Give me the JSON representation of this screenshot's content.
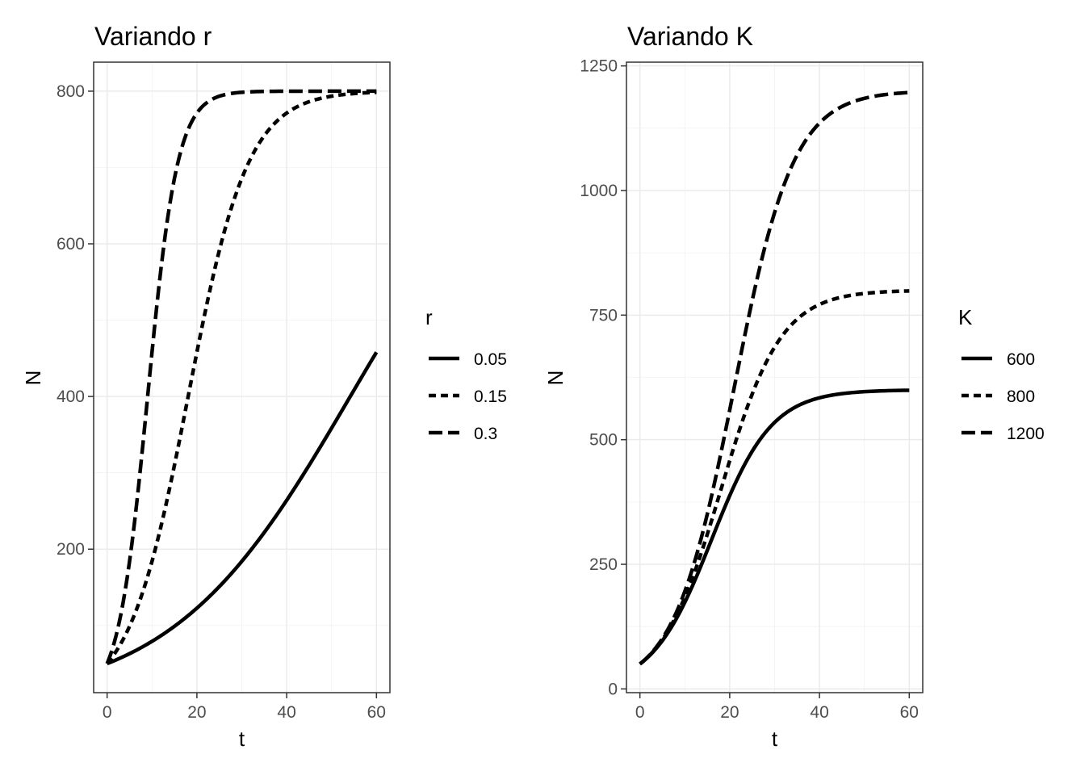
{
  "chart_data": [
    {
      "type": "line",
      "title": "Variando r",
      "xlabel": "t",
      "ylabel": "N",
      "xlim": [
        -3,
        63
      ],
      "ylim": [
        12,
        838
      ],
      "x_ticks": [
        "0",
        "20",
        "40",
        "60"
      ],
      "x_tick_values": [
        0,
        20,
        40,
        60
      ],
      "y_ticks": [
        "200",
        "400",
        "600",
        "800"
      ],
      "y_tick_values": [
        200,
        400,
        600,
        800
      ],
      "grid": true,
      "legend": {
        "title": "r",
        "position": "right"
      },
      "model": {
        "N0": 50,
        "K": 800
      },
      "series": [
        {
          "name": "0.05",
          "r": 0.05,
          "K": 800,
          "linetype": "solid",
          "x": [
            0,
            60
          ],
          "y_end": 455
        },
        {
          "name": "0.15",
          "r": 0.15,
          "K": 800,
          "linetype": "dotted",
          "x": [
            0,
            60
          ],
          "y_end": 800
        },
        {
          "name": "0.3",
          "r": 0.3,
          "K": 800,
          "linetype": "dashed",
          "x": [
            0,
            60
          ],
          "y_end": 800
        }
      ]
    },
    {
      "type": "line",
      "title": "Variando K",
      "xlabel": "t",
      "ylabel": "N",
      "xlim": [
        -3,
        63
      ],
      "ylim": [
        -7.5,
        1257.5
      ],
      "x_ticks": [
        "0",
        "20",
        "40",
        "60"
      ],
      "x_tick_values": [
        0,
        20,
        40,
        60
      ],
      "y_ticks": [
        "0",
        "250",
        "500",
        "750",
        "1000",
        "1250"
      ],
      "y_tick_values": [
        0,
        250,
        500,
        750,
        1000,
        1250
      ],
      "grid": true,
      "legend": {
        "title": "K",
        "position": "right"
      },
      "model": {
        "N0": 50,
        "r": 0.15
      },
      "series": [
        {
          "name": "600",
          "r": 0.15,
          "K": 600,
          "linetype": "solid",
          "x": [
            0,
            60
          ],
          "y_end": 600
        },
        {
          "name": "800",
          "r": 0.15,
          "K": 800,
          "linetype": "dotted",
          "x": [
            0,
            60
          ],
          "y_end": 800
        },
        {
          "name": "1200",
          "r": 0.15,
          "K": 1200,
          "linetype": "dashed",
          "x": [
            0,
            60
          ],
          "y_end": 1200
        }
      ]
    }
  ]
}
